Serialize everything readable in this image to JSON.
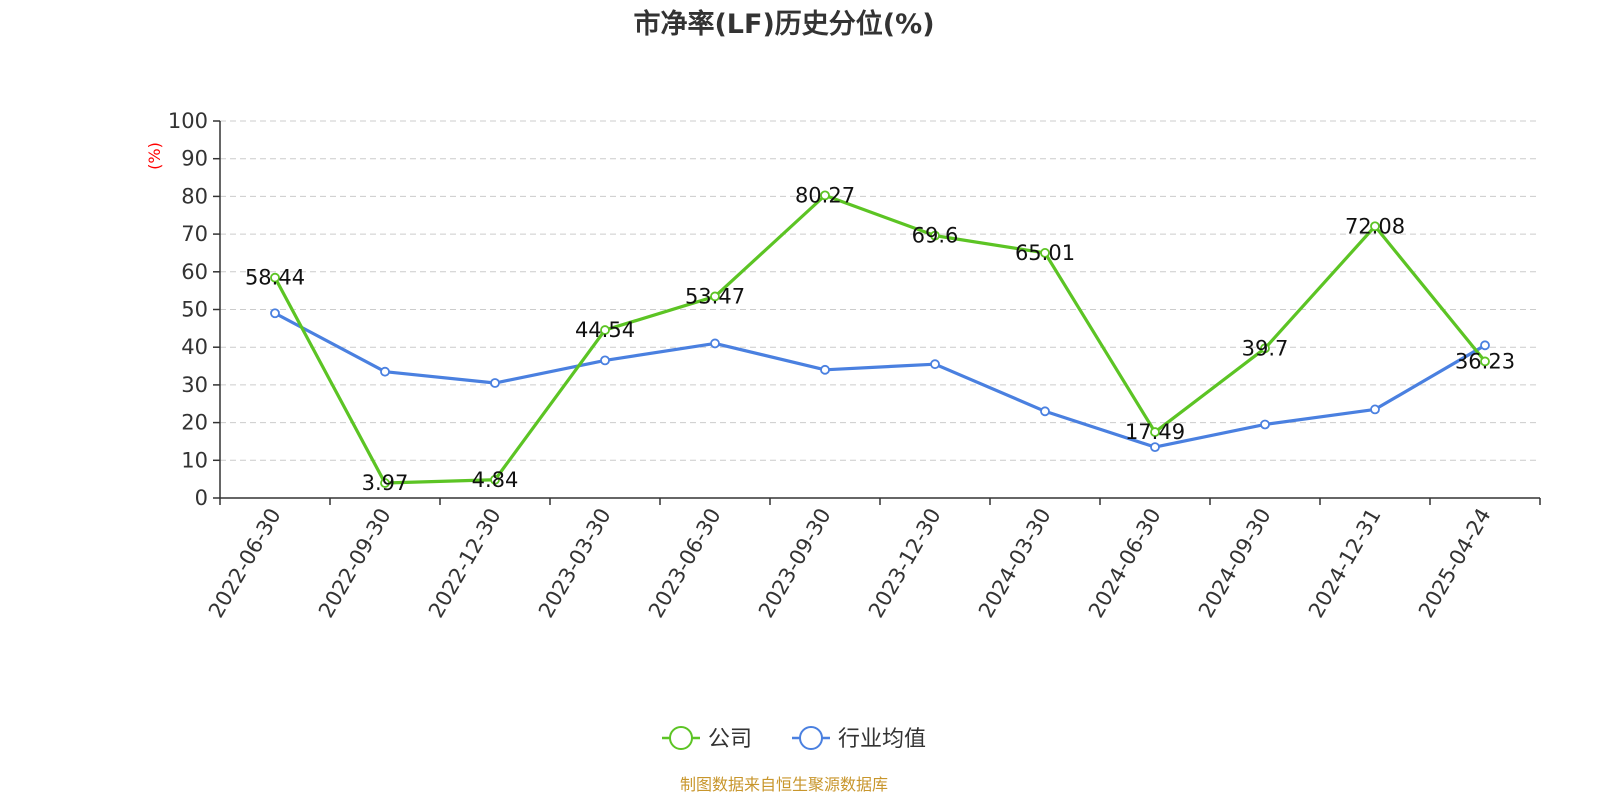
{
  "chart_data": {
    "type": "line",
    "title": "市净率(LF)历史分位(%)",
    "xlabel": "",
    "ylabel": "(%)",
    "ylim": [
      0,
      100
    ],
    "yticks": [
      0,
      10,
      20,
      30,
      40,
      50,
      60,
      70,
      80,
      90,
      100
    ],
    "grid": true,
    "legend_position": "bottom",
    "categories": [
      "2022-06-30",
      "2022-09-30",
      "2022-12-30",
      "2023-03-30",
      "2023-06-30",
      "2023-09-30",
      "2023-12-30",
      "2024-03-30",
      "2024-06-30",
      "2024-09-30",
      "2024-12-31",
      "2025-04-24"
    ],
    "series": [
      {
        "name": "公司",
        "color": "#5cc424",
        "values": [
          58.44,
          3.97,
          4.84,
          44.54,
          53.47,
          80.27,
          69.6,
          65.01,
          17.49,
          39.7,
          72.08,
          36.23
        ],
        "labels": [
          "58.44",
          "3.97",
          "4.84",
          "44.54",
          "53.47",
          "80.27",
          "69.6",
          "65.01",
          "17.49",
          "39.7",
          "72.08",
          "36.23"
        ]
      },
      {
        "name": "行业均值",
        "color": "#4a80e0",
        "values": [
          49.0,
          33.5,
          30.5,
          36.5,
          41.0,
          34.0,
          35.5,
          23.0,
          13.5,
          19.5,
          23.5,
          40.5
        ]
      }
    ]
  },
  "footer": {
    "source": "制图数据来自恒生聚源数据库"
  }
}
